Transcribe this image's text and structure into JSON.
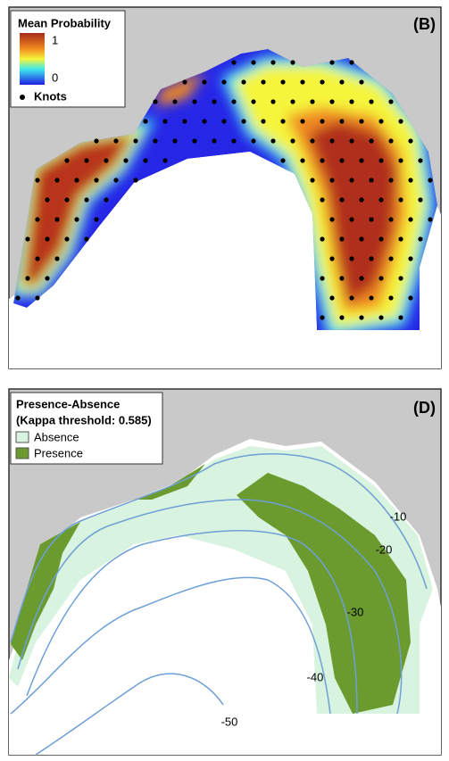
{
  "panels": [
    {
      "label": "(B)",
      "legend": {
        "title": "Mean Probability",
        "scale_max": "1",
        "scale_min": "0",
        "knots": "Knots"
      }
    },
    {
      "label": "(D)",
      "legend": {
        "title": "Presence-Absence",
        "subtitle": "(Kappa threshold: 0.585)",
        "items": [
          "Absence",
          "Presence"
        ]
      },
      "contour_labels": [
        -10,
        -20,
        -30,
        -40,
        -50
      ]
    }
  ]
}
